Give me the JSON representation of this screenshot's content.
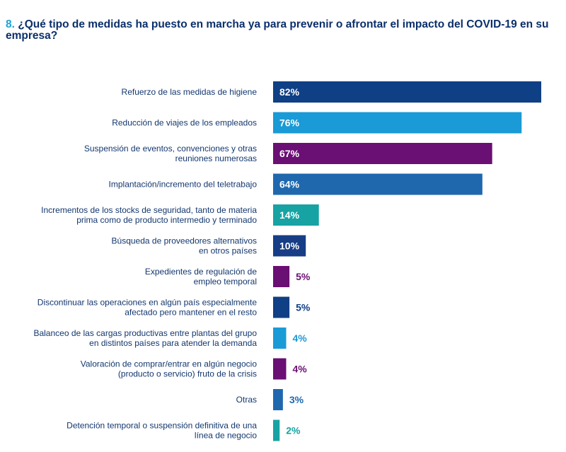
{
  "question": {
    "number": "8.",
    "text": "¿Qué tipo de medidas ha puesto en marcha ya para prevenir o afrontar el impacto del COVID-19 en su empresa?"
  },
  "colors": {
    "dark_blue": "#0f3f85",
    "light_blue": "#1a9ad6",
    "purple": "#6a0f73",
    "mid_blue": "#1f68ae",
    "teal": "#17a3a3",
    "navy": "#173d86",
    "label_text": "#13376e",
    "title_text": "#0a2f6b",
    "title_number": "#1aa3d9"
  },
  "chart_data": {
    "type": "bar",
    "orientation": "horizontal",
    "value_format": "percent",
    "xlim": [
      0,
      82
    ],
    "categories": [
      [
        "Refuerzo de las medidas de higiene"
      ],
      [
        "Reducción de viajes de los empleados"
      ],
      [
        "Suspensión de eventos, convenciones y otras",
        "reuniones numerosas"
      ],
      [
        "Implantación/incremento del teletrabajo"
      ],
      [
        "Incrementos de los stocks de seguridad, tanto de materia",
        "prima como de producto intermedio y terminado"
      ],
      [
        "Búsqueda de proveedores alternativos",
        "en otros países"
      ],
      [
        "Expedientes de regulación de",
        "empleo temporal"
      ],
      [
        "Discontinuar las operaciones en algún país especialmente",
        "afectado pero mantener en el resto"
      ],
      [
        "Balanceo de las cargas productivas entre plantas del grupo",
        "en distintos países para atender la demanda"
      ],
      [
        "Valoración de comprar/entrar en algún negocio",
        "(producto o servicio) fruto de la crisis"
      ],
      [
        "Otras"
      ],
      [
        "Detención temporal o suspensión definitiva de una",
        "línea de negocio"
      ]
    ],
    "values": [
      82,
      76,
      67,
      64,
      14,
      10,
      5,
      5,
      4,
      4,
      3,
      2
    ],
    "labels": [
      "82%",
      "76%",
      "67%",
      "64%",
      "14%",
      "10%",
      "5%",
      "5%",
      "4%",
      "4%",
      "3%",
      "2%"
    ],
    "bar_colors": [
      "#0f3f85",
      "#1a9ad6",
      "#6a0f73",
      "#1f68ae",
      "#17a3a3",
      "#173d86",
      "#6a0f73",
      "#0f3f85",
      "#1a9ad6",
      "#6a0f73",
      "#1f68ae",
      "#17a3a3"
    ]
  }
}
